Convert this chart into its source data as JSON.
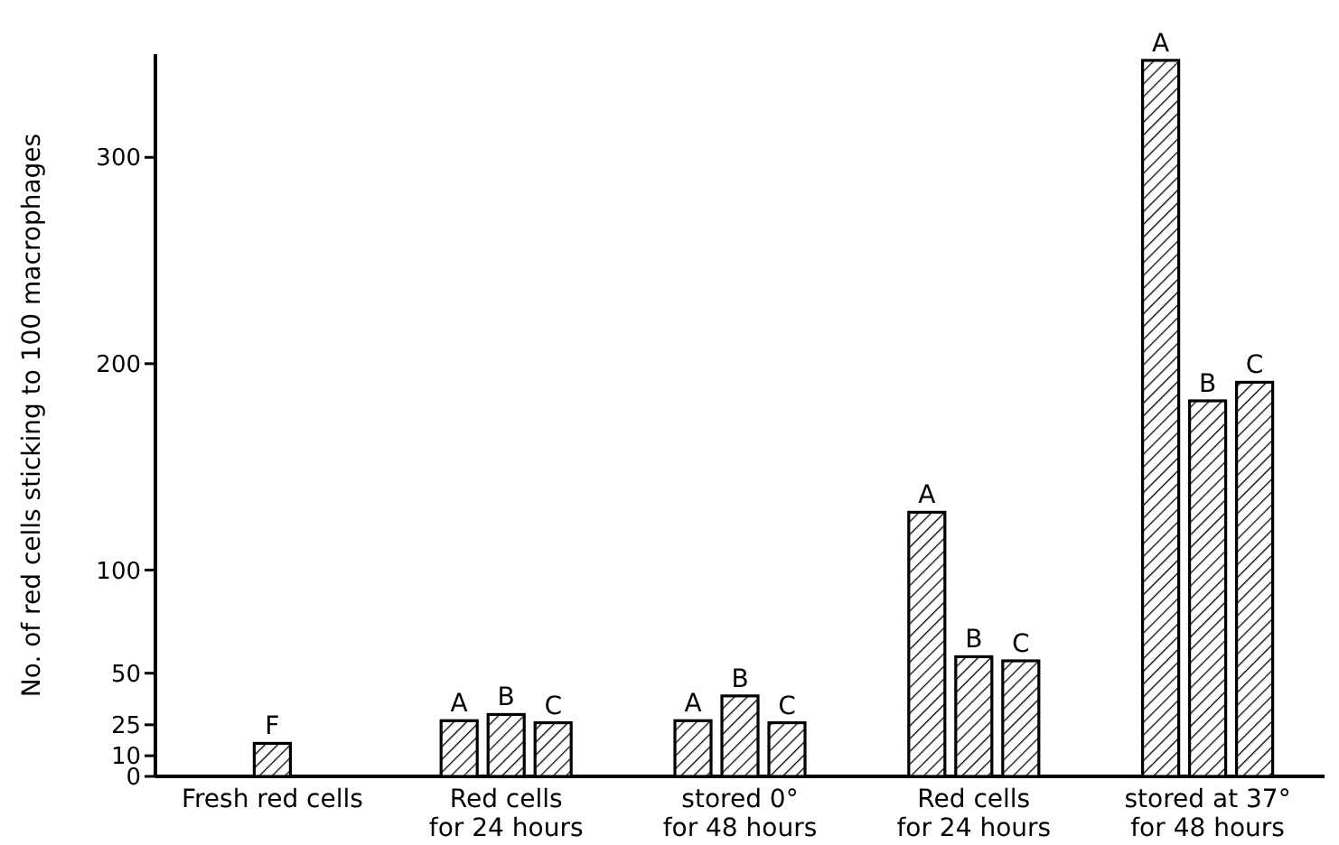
{
  "chart_data": {
    "type": "bar",
    "ylabel": "No. of red cells sticking to 100 macrophages",
    "categories": [
      "Fresh red cells",
      "Red cells\nfor 24 hours",
      "stored 0°\nfor 48 hours",
      "Red cells\nfor 24 hours",
      "stored at 37°\nfor 48 hours"
    ],
    "series": [
      {
        "name": "F",
        "color": "#000000",
        "values": [
          16,
          null,
          null,
          null,
          null
        ]
      },
      {
        "name": "A",
        "color": "#000000",
        "values": [
          null,
          27,
          27,
          128,
          347
        ]
      },
      {
        "name": "B",
        "color": "#000000",
        "values": [
          null,
          30,
          39,
          58,
          182
        ]
      },
      {
        "name": "C",
        "color": "#000000",
        "values": [
          null,
          26,
          26,
          56,
          191
        ]
      }
    ],
    "ylim": [
      0,
      350
    ],
    "yticks": [
      0,
      10,
      25,
      50,
      100,
      200,
      300
    ],
    "grid": false
  }
}
